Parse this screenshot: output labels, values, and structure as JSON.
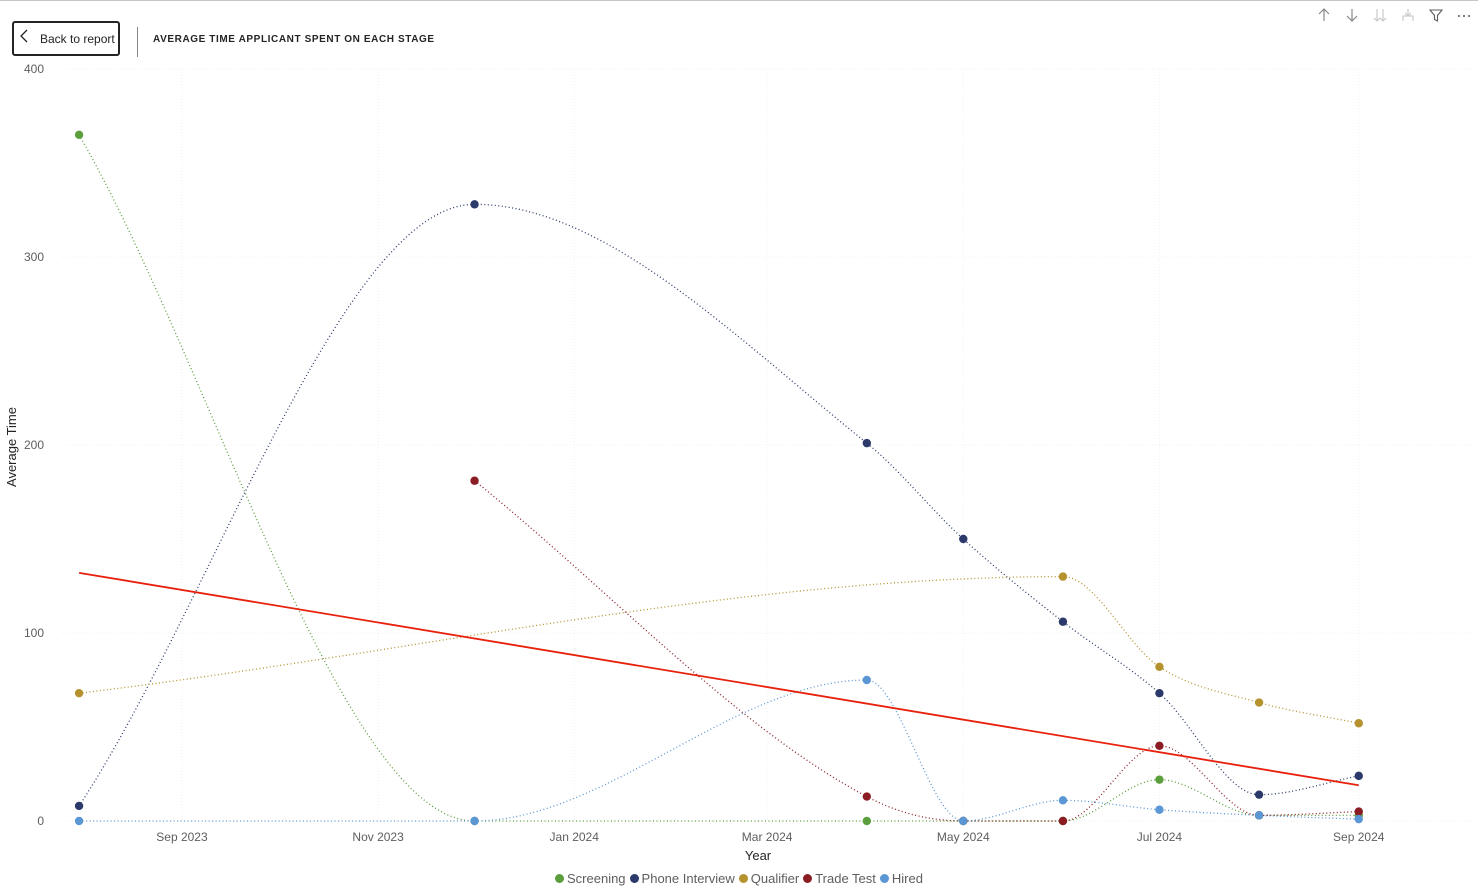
{
  "header": {
    "back_label": "Back to report",
    "title": "AVERAGE TIME APPLICANT SPENT ON EACH STAGE"
  },
  "toolbar": {
    "icons": [
      "arrow-up-icon",
      "arrow-down-icon",
      "double-arrow-down-icon",
      "expand-hierarchy-icon",
      "filter-icon",
      "more-options-icon"
    ]
  },
  "chart_data": {
    "type": "line",
    "title": "AVERAGE TIME APPLICANT SPENT ON EACH STAGE",
    "xlabel": "Year",
    "ylabel": "Average Time",
    "ylim": [
      0,
      400
    ],
    "yticks": [
      0,
      100,
      200,
      300,
      400
    ],
    "xlim": [
      "2023-07-26",
      "2024-09-30"
    ],
    "xticks": [
      {
        "date": "2023-09-01",
        "label": "Sep 2023"
      },
      {
        "date": "2023-11-01",
        "label": "Nov 2023"
      },
      {
        "date": "2024-01-01",
        "label": "Jan 2024"
      },
      {
        "date": "2024-03-01",
        "label": "Mar 2024"
      },
      {
        "date": "2024-05-01",
        "label": "May 2024"
      },
      {
        "date": "2024-07-01",
        "label": "Jul 2024"
      },
      {
        "date": "2024-09-01",
        "label": "Sep 2024"
      }
    ],
    "grid": true,
    "legend_position": "bottom-center",
    "series": [
      {
        "name": "Screening",
        "color": "#5b9e3c",
        "points": [
          [
            "2023-07-31",
            365
          ],
          [
            "2023-12-01",
            0
          ],
          [
            "2024-04-01",
            0
          ],
          [
            "2024-05-01",
            0
          ],
          [
            "2024-06-01",
            0
          ],
          [
            "2024-07-01",
            22
          ],
          [
            "2024-08-01",
            3
          ],
          [
            "2024-09-01",
            3
          ]
        ]
      },
      {
        "name": "Phone Interview",
        "color": "#2b3a6a",
        "points": [
          [
            "2023-07-31",
            8
          ],
          [
            "2023-12-01",
            328
          ],
          [
            "2024-04-01",
            201
          ],
          [
            "2024-05-01",
            150
          ],
          [
            "2024-06-01",
            106
          ],
          [
            "2024-07-01",
            68
          ],
          [
            "2024-08-01",
            14
          ],
          [
            "2024-09-01",
            24
          ]
        ]
      },
      {
        "name": "Qualifier",
        "color": "#b5922e",
        "points": [
          [
            "2023-07-31",
            68
          ],
          [
            "2024-06-01",
            130
          ],
          [
            "2024-07-01",
            82
          ],
          [
            "2024-08-01",
            63
          ],
          [
            "2024-09-01",
            52
          ]
        ]
      },
      {
        "name": "Trade Test",
        "color": "#8a1c24",
        "points": [
          [
            "2023-12-01",
            181
          ],
          [
            "2024-04-01",
            13
          ],
          [
            "2024-05-01",
            0
          ],
          [
            "2024-06-01",
            0
          ],
          [
            "2024-07-01",
            40
          ],
          [
            "2024-08-01",
            3
          ],
          [
            "2024-09-01",
            5
          ]
        ]
      },
      {
        "name": "Hired",
        "color": "#5b97d4",
        "points": [
          [
            "2023-07-31",
            0
          ],
          [
            "2023-12-01",
            0
          ],
          [
            "2024-04-01",
            75
          ],
          [
            "2024-05-01",
            0
          ],
          [
            "2024-06-01",
            11
          ],
          [
            "2024-07-01",
            6
          ],
          [
            "2024-08-01",
            3
          ],
          [
            "2024-09-01",
            1
          ]
        ]
      }
    ],
    "trend_line": {
      "color": "#e8200c",
      "start": [
        "2023-07-31",
        132
      ],
      "end": [
        "2024-09-01",
        19
      ]
    }
  }
}
